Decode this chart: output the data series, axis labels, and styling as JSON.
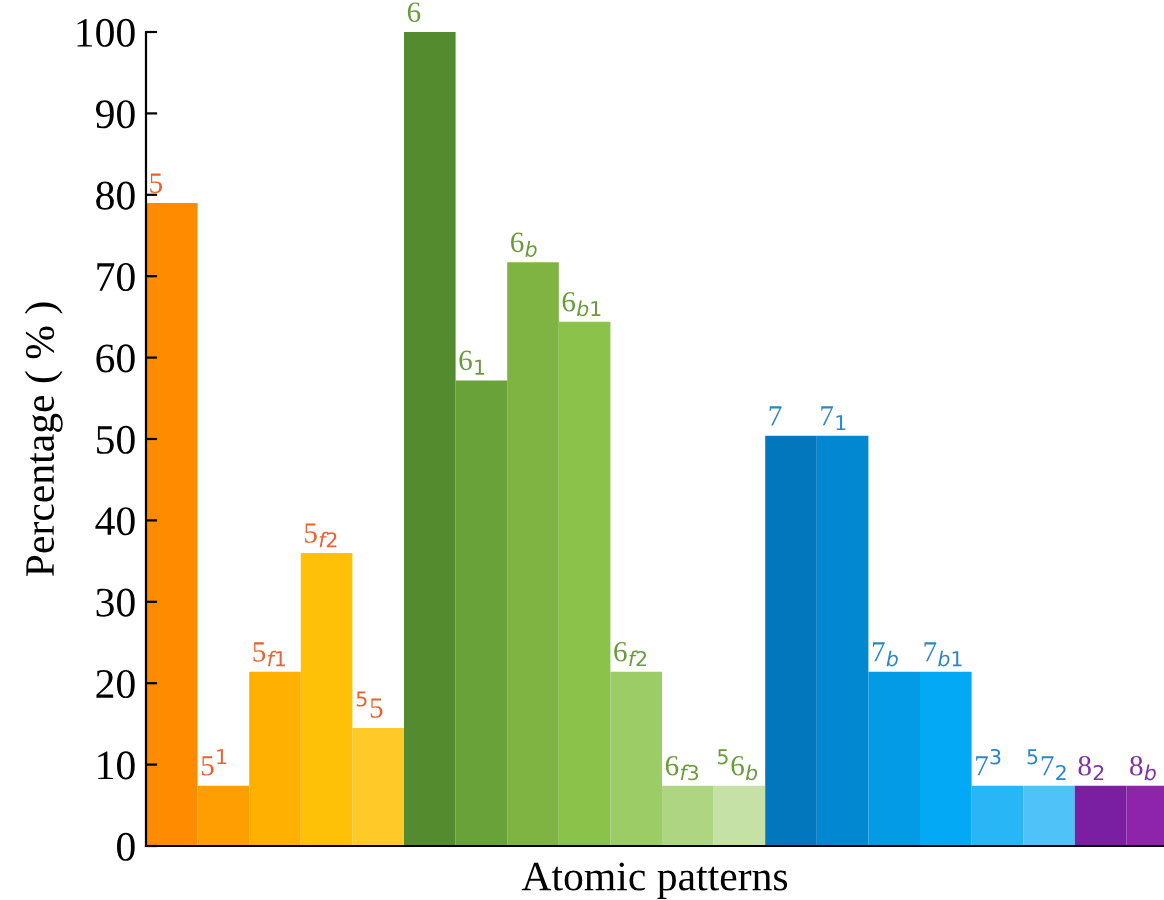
{
  "chart_data": {
    "type": "bar",
    "xlabel": "Atomic patterns",
    "ylabel": "Percentage ( % )",
    "categories": [
      "5",
      "5$^{1}$",
      "5$_{f1}$",
      "5$_{f2}$",
      "$^{5}$5",
      "6",
      "6$_{1}$",
      "6$_{b}$",
      "6$_{b1}$",
      "6$_{f2}$",
      "6$_{f3}$",
      "$^{5}$6$_{b}$",
      "7",
      "7$_{1}$",
      "7$_{b}$",
      "7$_{b1}$",
      "7$^{3}$",
      "$^{5}$7$_{2}$",
      "8$_{2}$",
      "8$_{b}$"
    ],
    "series": [
      {
        "color": "#e8602c",
        "colors": [
          "#ff8c00",
          "#ff9e00",
          "#ffb000",
          "#ffc107",
          "#ffca28",
          null,
          null,
          null,
          null,
          null,
          null,
          null,
          null,
          null,
          null,
          null,
          null,
          null,
          null,
          null
        ],
        "values": [
          79,
          7.4,
          21.4,
          36,
          14.5,
          null,
          null,
          null,
          null,
          null,
          null,
          null,
          null,
          null,
          null,
          null,
          null,
          null,
          null,
          null
        ]
      },
      {
        "color": "#6a9a3a",
        "colors": [
          null,
          null,
          null,
          null,
          null,
          "#548b2f",
          "#6aa23a",
          "#7fb342",
          "#8bc34a",
          "#9ccc65",
          "#aed581",
          "#c5e1a5",
          null,
          null,
          null,
          null,
          null,
          null,
          null,
          null
        ],
        "values": [
          null,
          null,
          null,
          null,
          null,
          100,
          57.2,
          71.7,
          64.4,
          21.4,
          7.4,
          7.4,
          null,
          null,
          null,
          null,
          null,
          null,
          null,
          null
        ]
      },
      {
        "color": "#2a86c8",
        "colors": [
          null,
          null,
          null,
          null,
          null,
          null,
          null,
          null,
          null,
          null,
          null,
          null,
          "#0277bd",
          "#0288d1",
          "#039be5",
          "#03a9f4",
          "#29b6f6",
          "#4fc3f7",
          null,
          null
        ],
        "values": [
          null,
          null,
          null,
          null,
          null,
          null,
          null,
          null,
          null,
          null,
          null,
          null,
          50.4,
          50.4,
          21.4,
          21.4,
          7.4,
          7.4,
          null,
          null
        ]
      },
      {
        "color": "#8030a8",
        "colors": [
          null,
          null,
          null,
          null,
          null,
          null,
          null,
          null,
          null,
          null,
          null,
          null,
          null,
          null,
          null,
          null,
          null,
          null,
          "#7b1fa2",
          "#8e24aa"
        ],
        "values": [
          null,
          null,
          null,
          null,
          null,
          null,
          null,
          null,
          null,
          null,
          null,
          null,
          null,
          null,
          null,
          null,
          null,
          null,
          7.4,
          7.4
        ]
      }
    ],
    "ylim": [
      0,
      100
    ],
    "yticks": [
      0,
      10,
      20,
      30,
      40,
      50,
      60,
      70,
      80,
      90,
      100
    ],
    "tick_labels": "y",
    "grid": false,
    "legend": false
  }
}
